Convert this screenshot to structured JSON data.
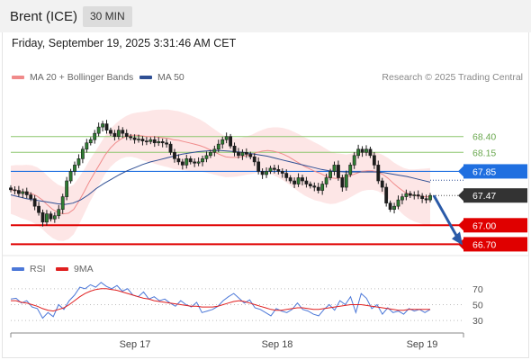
{
  "header": {
    "title": "Brent (ICE)",
    "interval": "30 MIN"
  },
  "datetime": "Friday, September 19, 2025 3:31:46 AM CET",
  "legend": {
    "bb": {
      "label": "MA 20 + Bollinger Bands",
      "color": "#f08a8a"
    },
    "ma50": {
      "label": "MA 50",
      "color": "#2f4f94"
    }
  },
  "copyright": "Research © 2025 Trading Central",
  "rsi_legend": {
    "rsi": {
      "label": "RSI",
      "color": "#4c78d8"
    },
    "ma9": {
      "label": "9MA",
      "color": "#e02020"
    }
  },
  "chart_data": [
    {
      "type": "candlestick",
      "title": "Brent (ICE)",
      "ylim": [
        66.55,
        68.85
      ],
      "x_ticks": [
        "Sep 17",
        "Sep 18",
        "Sep 19"
      ],
      "levels": [
        {
          "label": "68.40",
          "value": 68.4,
          "color": "#8cc56d",
          "style": "line"
        },
        {
          "label": "68.15",
          "value": 68.15,
          "color": "#8cc56d",
          "style": "line"
        },
        {
          "label": "67.85",
          "value": 67.85,
          "color": "#1f6fe0",
          "style": "badge"
        },
        {
          "label": "67.47",
          "value": 67.47,
          "color": "#333333",
          "style": "badge"
        },
        {
          "label": "67.00",
          "value": 67.0,
          "color": "#e00000",
          "style": "badge"
        },
        {
          "label": "66.70",
          "value": 66.7,
          "color": "#e00000",
          "style": "badge"
        }
      ],
      "current_price": 67.47,
      "forecast_target": 66.7,
      "closes": [
        67.56,
        67.55,
        67.5,
        67.53,
        67.48,
        67.42,
        67.3,
        67.2,
        67.05,
        67.18,
        67.1,
        67.15,
        67.25,
        67.45,
        67.7,
        67.85,
        67.95,
        68.05,
        68.2,
        68.3,
        68.35,
        68.45,
        68.55,
        68.6,
        68.5,
        68.45,
        68.4,
        68.5,
        68.45,
        68.4,
        68.38,
        68.35,
        68.36,
        68.33,
        68.32,
        68.35,
        68.3,
        68.32,
        68.3,
        68.28,
        68.15,
        68.05,
        68.0,
        67.95,
        68.05,
        68.0,
        67.98,
        68.0,
        68.05,
        68.1,
        68.15,
        68.2,
        68.28,
        68.35,
        68.4,
        68.25,
        68.15,
        68.1,
        68.15,
        68.12,
        68.08,
        68.0,
        67.85,
        67.8,
        67.85,
        67.9,
        67.88,
        67.85,
        67.82,
        67.75,
        67.7,
        67.65,
        67.75,
        67.7,
        67.65,
        67.62,
        67.6,
        67.55,
        67.65,
        67.75,
        67.85,
        67.95,
        67.75,
        67.6,
        67.8,
        67.95,
        68.1,
        68.2,
        68.15,
        68.2,
        68.1,
        67.95,
        67.7,
        67.6,
        67.35,
        67.25,
        67.3,
        67.4,
        67.45,
        67.5,
        67.47,
        67.48,
        67.46,
        67.42,
        67.4,
        67.47
      ],
      "ma20": [
        67.56,
        67.55,
        67.53,
        67.52,
        67.5,
        67.46,
        67.4,
        67.32,
        67.25,
        67.2,
        67.18,
        67.19,
        67.25,
        67.38,
        67.53,
        67.69,
        67.83,
        67.97,
        68.11,
        68.22,
        68.3,
        68.36,
        68.4,
        68.42,
        68.42,
        68.41,
        68.4,
        68.4,
        68.39,
        68.38,
        68.37,
        68.35,
        68.34,
        68.32,
        68.3,
        68.28,
        68.26,
        68.23,
        68.19,
        68.15,
        68.11,
        68.08,
        68.07,
        68.07,
        68.08,
        68.1,
        68.12,
        68.15,
        68.17,
        68.18,
        68.17,
        68.15,
        68.12,
        68.08,
        68.03,
        67.98,
        67.93,
        67.89,
        67.85,
        67.82,
        67.78,
        67.75,
        67.74,
        67.75,
        67.76,
        67.79,
        67.82,
        67.85,
        67.86,
        67.86,
        67.84,
        67.8,
        67.74,
        67.66,
        67.59,
        67.53,
        67.49,
        67.47,
        67.46,
        67.45,
        67.45
      ],
      "ma50": [
        67.48,
        67.45,
        67.42,
        67.4,
        67.38,
        67.36,
        67.34,
        67.33,
        67.35,
        67.4,
        67.48,
        67.58,
        67.66,
        67.73,
        67.8,
        67.86,
        67.91,
        67.96,
        68.0,
        68.03,
        68.06,
        68.09,
        68.12,
        68.14,
        68.16,
        68.17,
        68.18,
        68.18,
        68.17,
        68.16,
        68.15,
        68.13,
        68.11,
        68.09,
        68.06,
        68.03,
        68.0,
        67.97,
        67.94,
        67.91,
        67.88,
        67.86,
        67.85,
        67.84,
        67.84,
        67.84,
        67.84,
        67.84,
        67.83,
        67.81,
        67.79,
        67.77,
        67.74,
        67.71,
        67.68
      ]
    },
    {
      "type": "line",
      "title": "RSI",
      "ylim": [
        20,
        80
      ],
      "y_ticks": [
        "70",
        "50",
        "30"
      ],
      "series": [
        {
          "name": "RSI",
          "values": [
            57,
            58,
            52,
            55,
            47,
            45,
            33,
            40,
            35,
            50,
            44,
            55,
            62,
            72,
            70,
            75,
            72,
            78,
            73,
            70,
            74,
            67,
            70,
            62,
            60,
            66,
            57,
            60,
            55,
            57,
            52,
            48,
            55,
            50,
            47,
            53,
            40,
            42,
            44,
            48,
            55,
            60,
            64,
            58,
            52,
            56,
            46,
            44,
            40,
            36,
            45,
            42,
            40,
            44,
            52,
            44,
            42,
            38,
            36,
            44,
            50,
            43,
            55,
            50,
            60,
            40,
            64,
            58,
            45,
            50,
            38,
            46,
            40,
            42,
            38,
            45,
            42,
            44,
            40,
            44
          ]
        },
        {
          "name": "9MA",
          "values": [
            55,
            55,
            53,
            52,
            50,
            48,
            45,
            43,
            42,
            44,
            46,
            50,
            55,
            60,
            64,
            67,
            69,
            70,
            70,
            69,
            68,
            66,
            64,
            62,
            60,
            58,
            57,
            55,
            54,
            53,
            52,
            51,
            50,
            49,
            48,
            48,
            47,
            47,
            47,
            48,
            50,
            52,
            54,
            55,
            54,
            52,
            50,
            48,
            46,
            44,
            43,
            43,
            44,
            45,
            46,
            46,
            45,
            44,
            44,
            45,
            46,
            47,
            48,
            49,
            50,
            50,
            50,
            49,
            48,
            47,
            46,
            45,
            44,
            43,
            43,
            44,
            44,
            44,
            44,
            44
          ]
        }
      ]
    }
  ]
}
